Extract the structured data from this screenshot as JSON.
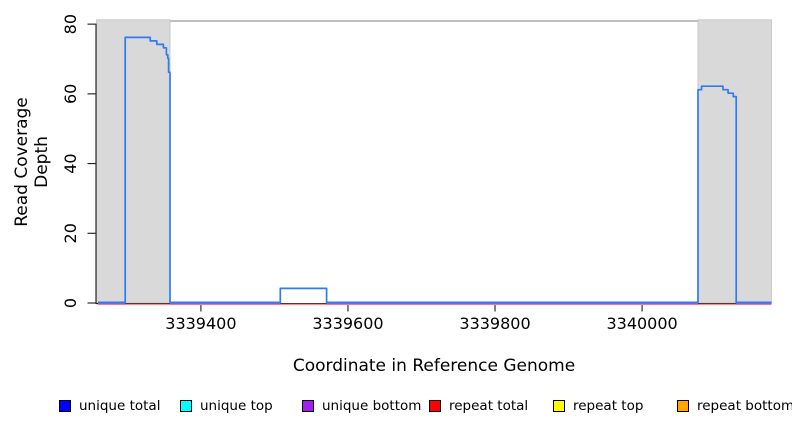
{
  "figure": {
    "xlabel": "Coordinate in Reference Genome",
    "ylabel": "Read Coverage Depth"
  },
  "chart_data": {
    "type": "line",
    "subtype": "step-coverage",
    "title": "",
    "xlabel": "Coordinate in Reference Genome",
    "ylabel": "Read Coverage Depth",
    "xlim": [
      3339258,
      3340176
    ],
    "ylim": [
      0,
      80.9
    ],
    "x_ticks": [
      3339400,
      3339600,
      3339800,
      3340000
    ],
    "y_ticks": [
      0,
      20,
      40,
      60,
      80
    ],
    "grid": false,
    "plot_bg": "#ffffff",
    "shade_color": "#d9d9d9",
    "legend_position": "bottom",
    "shaded_regions": [
      {
        "x0": 3339258,
        "x1": 3339358
      },
      {
        "x0": 3340076,
        "x1": 3340176
      }
    ],
    "series": [
      {
        "name": "repeat total",
        "type": "baseline-segments",
        "color": "#ff8a8a",
        "y": 0,
        "x_ranges": [
          [
            3339260,
            3340176
          ]
        ]
      },
      {
        "name": "unique bottom",
        "type": "baseline-segments",
        "color": "#7d63ea",
        "y": 0,
        "x_ranges": [
          [
            3339260,
            3339297
          ],
          [
            3339358,
            3339508
          ],
          [
            3339571,
            3340076
          ],
          [
            3340128,
            3340176
          ]
        ]
      },
      {
        "name": "unique total",
        "type": "step",
        "color": "#2e7bf2",
        "points": [
          [
            3339260,
            0
          ],
          [
            3339297,
            0
          ],
          [
            3339297,
            76
          ],
          [
            3339331,
            76
          ],
          [
            3339331,
            75
          ],
          [
            3339340,
            75
          ],
          [
            3339340,
            74
          ],
          [
            3339349,
            74
          ],
          [
            3339349,
            73
          ],
          [
            3339353,
            73
          ],
          [
            3339353,
            71
          ],
          [
            3339355,
            71
          ],
          [
            3339355,
            70
          ],
          [
            3339356,
            70
          ],
          [
            3339356,
            66
          ],
          [
            3339358,
            66
          ],
          [
            3339358,
            0
          ],
          [
            3339508,
            0
          ],
          [
            3339508,
            4
          ],
          [
            3339571,
            4
          ],
          [
            3339571,
            0
          ],
          [
            3340076,
            0
          ],
          [
            3340076,
            61
          ],
          [
            3340081,
            61
          ],
          [
            3340081,
            62
          ],
          [
            3340110,
            62
          ],
          [
            3340110,
            61
          ],
          [
            3340117,
            61
          ],
          [
            3340117,
            60
          ],
          [
            3340124,
            60
          ],
          [
            3340124,
            59
          ],
          [
            3340128,
            59
          ],
          [
            3340128,
            0
          ],
          [
            3340176,
            0
          ]
        ]
      }
    ],
    "legend_entries": [
      {
        "label": "unique total",
        "color": "#0000ff"
      },
      {
        "label": "unique top",
        "color": "#00ffff"
      },
      {
        "label": "unique bottom",
        "color": "#a020f0"
      },
      {
        "label": "repeat total",
        "color": "#ff0000"
      },
      {
        "label": "repeat top",
        "color": "#ffff00"
      },
      {
        "label": "repeat bottom",
        "color": "#ffa500"
      }
    ]
  }
}
